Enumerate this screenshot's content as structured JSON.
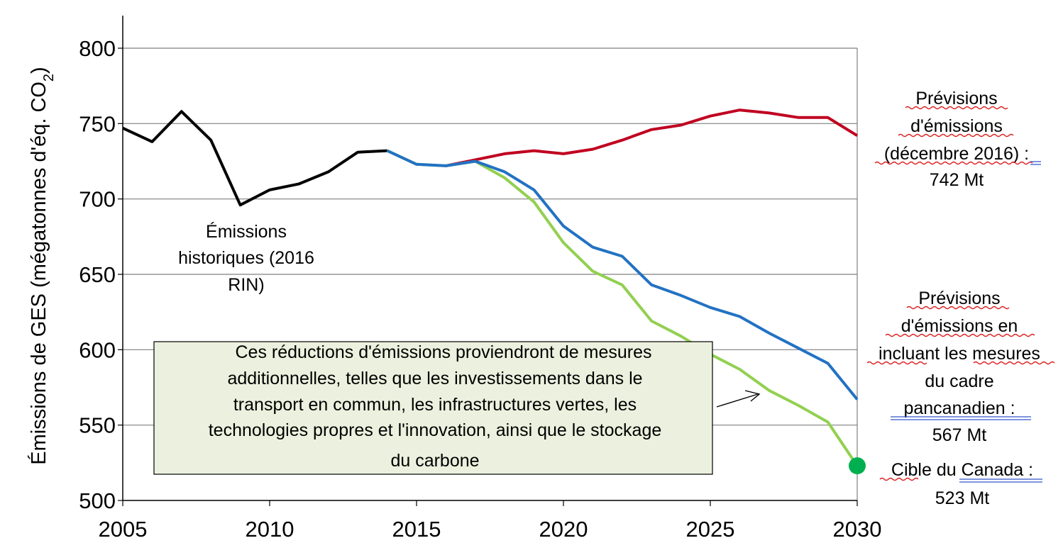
{
  "chart_data": {
    "type": "line",
    "ylabel": "Émissions de GES (mégatonnes d'éq. CO",
    "ylabel_sub": "2",
    "ylabel_end": ")",
    "xlim": [
      2005,
      2030
    ],
    "ylim": [
      500,
      800
    ],
    "x_ticks": [
      2005,
      2010,
      2015,
      2020,
      2025,
      2030
    ],
    "y_ticks": [
      500,
      550,
      600,
      650,
      700,
      750,
      800
    ],
    "grid": "horizontal",
    "series": [
      {
        "key": "historical",
        "color": "#000000",
        "points": [
          [
            2005,
            747
          ],
          [
            2006,
            738
          ],
          [
            2007,
            758
          ],
          [
            2008,
            739
          ],
          [
            2009,
            696
          ],
          [
            2010,
            706
          ],
          [
            2011,
            710
          ],
          [
            2012,
            718
          ],
          [
            2013,
            731
          ],
          [
            2014,
            732
          ]
        ]
      },
      {
        "key": "forecast_dec2016",
        "color": "#c00020",
        "points": [
          [
            2016,
            722
          ],
          [
            2017,
            726
          ],
          [
            2018,
            730
          ],
          [
            2019,
            732
          ],
          [
            2020,
            730
          ],
          [
            2021,
            733
          ],
          [
            2022,
            739
          ],
          [
            2023,
            746
          ],
          [
            2024,
            749
          ],
          [
            2025,
            755
          ],
          [
            2026,
            759
          ],
          [
            2027,
            757
          ],
          [
            2028,
            754
          ],
          [
            2029,
            754
          ],
          [
            2030,
            742
          ]
        ]
      },
      {
        "key": "forecast_pancanadian",
        "color": "#2272c3",
        "points": [
          [
            2014,
            732
          ],
          [
            2015,
            723
          ],
          [
            2016,
            722
          ],
          [
            2017,
            725
          ],
          [
            2018,
            718
          ],
          [
            2019,
            706
          ],
          [
            2020,
            682
          ],
          [
            2021,
            668
          ],
          [
            2022,
            662
          ],
          [
            2023,
            643
          ],
          [
            2024,
            636
          ],
          [
            2025,
            628
          ],
          [
            2026,
            622
          ],
          [
            2027,
            611
          ],
          [
            2028,
            601
          ],
          [
            2029,
            591
          ],
          [
            2030,
            567
          ]
        ]
      },
      {
        "key": "additional_measures",
        "color": "#92d050",
        "points": [
          [
            2014,
            732
          ],
          [
            2015,
            723
          ],
          [
            2016,
            722
          ],
          [
            2017,
            725
          ],
          [
            2018,
            714
          ],
          [
            2019,
            698
          ],
          [
            2020,
            671
          ],
          [
            2021,
            652
          ],
          [
            2022,
            643
          ],
          [
            2023,
            619
          ],
          [
            2024,
            609
          ],
          [
            2025,
            597
          ],
          [
            2026,
            587
          ],
          [
            2027,
            573
          ],
          [
            2028,
            563
          ],
          [
            2029,
            552
          ],
          [
            2030,
            523
          ]
        ]
      }
    ],
    "target": {
      "x": 2030,
      "y": 523,
      "color": "#00b050"
    },
    "annotations": {
      "historical": [
        "Émissions",
        "historiques (2016",
        "RIN)"
      ],
      "forecast": [
        "Prévisions",
        "d'émissions",
        "(décembre 2016) :",
        "742 Mt"
      ],
      "pancanadian": [
        "Prévisions",
        "d'émissions en",
        "incluant les mesures",
        "du cadre",
        "pancanadien :",
        "567 Mt"
      ],
      "target": [
        "Cible du Canada :",
        "523 Mt"
      ],
      "box": [
        "Ces réductions d'émissions proviendront de mesures",
        "additionnelles, telles que les investissements dans le",
        "transport en commun, les infrastructures vertes, les",
        "technologies propres et l'innovation, ainsi que le stockage",
        "du carbone"
      ]
    },
    "box_fill": "#ebf1de"
  }
}
